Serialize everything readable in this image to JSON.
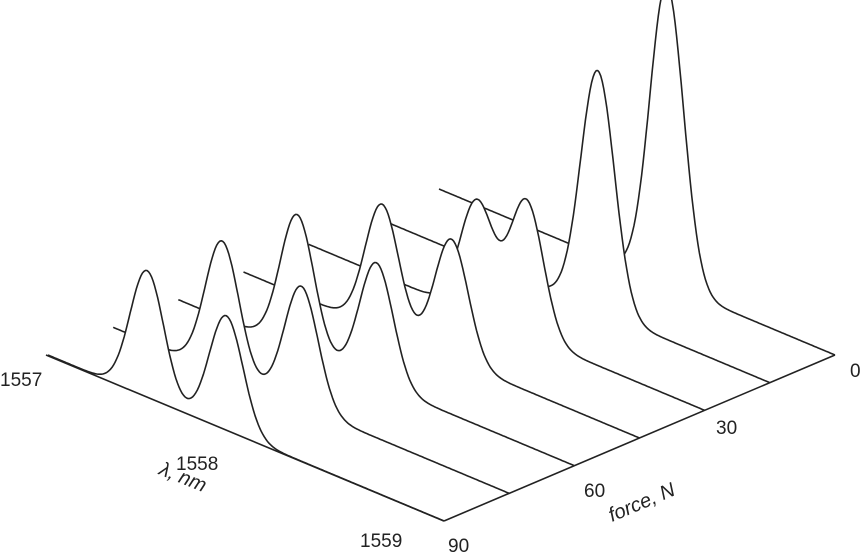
{
  "chart_data": {
    "type": "waterfall",
    "x_axis": {
      "label": "λ, nm",
      "ticks": [
        "1557",
        "1558",
        "1559"
      ],
      "range": [
        1557,
        1559
      ]
    },
    "z_axis": {
      "label": "force, N",
      "ticks": [
        "0",
        "30",
        "60",
        "90"
      ],
      "range": [
        0,
        90
      ]
    },
    "series": [
      {
        "force": 0,
        "peaks": [
          {
            "lambda": 1558.15,
            "height": 1.0
          }
        ]
      },
      {
        "force": 15,
        "peaks": [
          {
            "lambda": 1558.13,
            "height": 0.8
          }
        ]
      },
      {
        "force": 30,
        "peaks": [
          {
            "lambda": 1557.85,
            "height": 0.38
          },
          {
            "lambda": 1558.1,
            "height": 0.45
          }
        ]
      },
      {
        "force": 45,
        "peaks": [
          {
            "lambda": 1557.7,
            "height": 0.42
          },
          {
            "lambda": 1558.05,
            "height": 0.4
          }
        ]
      },
      {
        "force": 60,
        "peaks": [
          {
            "lambda": 1557.6,
            "height": 0.45
          },
          {
            "lambda": 1558.0,
            "height": 0.4
          }
        ]
      },
      {
        "force": 75,
        "peaks": [
          {
            "lambda": 1557.55,
            "height": 0.44
          },
          {
            "lambda": 1557.95,
            "height": 0.4
          }
        ]
      },
      {
        "force": 90,
        "peaks": [
          {
            "lambda": 1557.5,
            "height": 0.42
          },
          {
            "lambda": 1557.9,
            "height": 0.38
          }
        ]
      }
    ]
  }
}
